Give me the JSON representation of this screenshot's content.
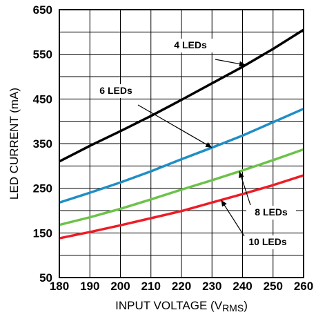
{
  "chart_data": {
    "type": "line",
    "xlabel": "INPUT VOLTAGE (V",
    "xlabel_sub": "RMS",
    "xlabel_close": ")",
    "ylabel": "LED CURRENT (mA)",
    "xlim": [
      180,
      260
    ],
    "ylim": [
      50,
      650
    ],
    "x_ticks": [
      180,
      190,
      200,
      210,
      220,
      230,
      240,
      250,
      260
    ],
    "y_ticks": [
      50,
      150,
      250,
      350,
      450,
      550,
      650
    ],
    "x_gridlines": [
      180,
      190,
      200,
      210,
      220,
      230,
      240,
      250,
      260
    ],
    "y_gridlines": [
      50,
      100,
      150,
      200,
      250,
      300,
      350,
      400,
      450,
      500,
      550,
      600,
      650
    ],
    "grid": true,
    "x": [
      180,
      190,
      200,
      210,
      220,
      230,
      240,
      250,
      260
    ],
    "series": [
      {
        "name": "4 LEDs",
        "color": "#000000",
        "values": [
          310,
          345,
          378,
          412,
          448,
          485,
          522,
          562,
          605
        ]
      },
      {
        "name": "6 LEDs",
        "color": "#1f8ec6",
        "values": [
          218,
          240,
          263,
          288,
          315,
          341,
          368,
          398,
          428
        ]
      },
      {
        "name": "8 LEDs",
        "color": "#6cc24a",
        "values": [
          168,
          185,
          204,
          225,
          247,
          268,
          290,
          313,
          337
        ]
      },
      {
        "name": "10 LEDs",
        "color": "#ee1c25",
        "values": [
          138,
          152,
          167,
          183,
          199,
          218,
          237,
          257,
          279
        ]
      }
    ],
    "annotations": [
      {
        "text": "4 LEDs",
        "series": 0,
        "target_x": 241
      },
      {
        "text": "6 LEDs",
        "series": 1,
        "target_x": 230
      },
      {
        "text": "8 LEDs",
        "series": 2,
        "target_x": 239
      },
      {
        "text": "10 LEDs",
        "series": 3,
        "target_x": 233
      }
    ]
  }
}
